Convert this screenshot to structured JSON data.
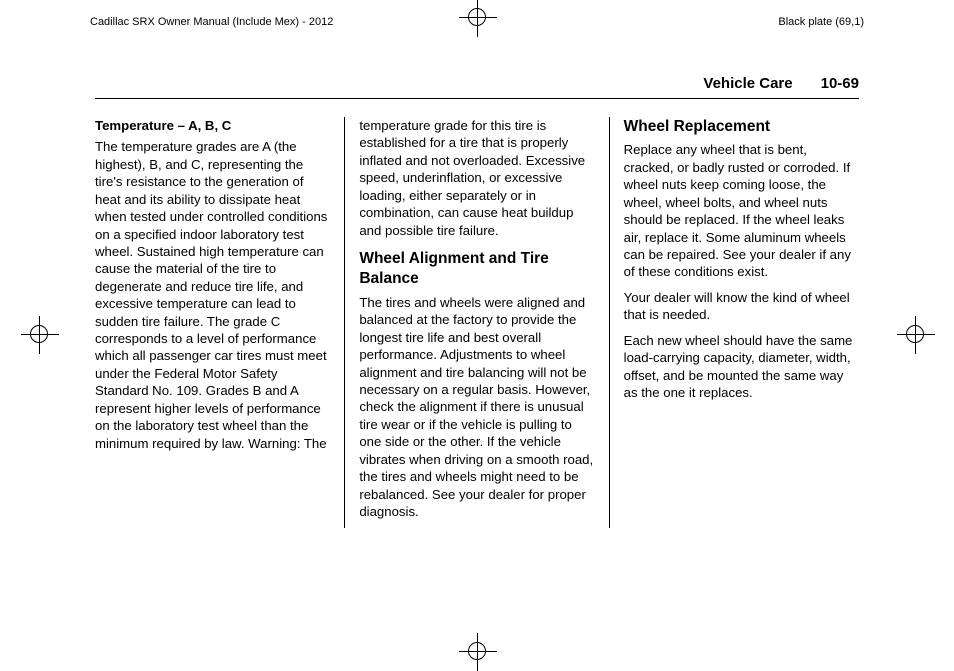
{
  "header": {
    "left": "Cadillac SRX Owner Manual (Include Mex) - 2012",
    "right": "Black plate (69,1)"
  },
  "running": {
    "section": "Vehicle Care",
    "page": "10-69"
  },
  "col1": {
    "h": "Temperature – A, B, C",
    "p1": "The temperature grades are A (the highest), B, and C, representing the tire's resistance to the generation of heat and its ability to dissipate heat when tested under controlled conditions on a specified indoor laboratory test wheel. Sustained high temperature can cause the material of the tire to degenerate and reduce tire life, and excessive temperature can lead to sudden tire failure. The grade C corresponds to a level of performance which all passenger car tires must meet under the Federal Motor Safety Standard No. 109. Grades B and A represent higher levels of performance on the laboratory test wheel than the minimum required by law. Warning: The"
  },
  "col2": {
    "p1": "temperature grade for this tire is established for a tire that is properly inflated and not overloaded. Excessive speed, underinflation, or excessive loading, either separately or in combination, can cause heat buildup and possible tire failure.",
    "h2": "Wheel Alignment and Tire Balance",
    "p2": "The tires and wheels were aligned and balanced at the factory to provide the longest tire life and best overall performance. Adjustments to wheel alignment and tire balancing will not be necessary on a regular basis. However, check the alignment if there is unusual tire wear or if the vehicle is pulling to one side or the other. If the vehicle vibrates when driving on a smooth road, the tires and wheels might need to be rebalanced. See your dealer for proper diagnosis."
  },
  "col3": {
    "h2": "Wheel Replacement",
    "p1": "Replace any wheel that is bent, cracked, or badly rusted or corroded. If wheel nuts keep coming loose, the wheel, wheel bolts, and wheel nuts should be replaced. If the wheel leaks air, replace it. Some aluminum wheels can be repaired. See your dealer if any of these conditions exist.",
    "p2": "Your dealer will know the kind of wheel that is needed.",
    "p3": "Each new wheel should have the same load-carrying capacity, diameter, width, offset, and be mounted the same way as the one it replaces."
  }
}
